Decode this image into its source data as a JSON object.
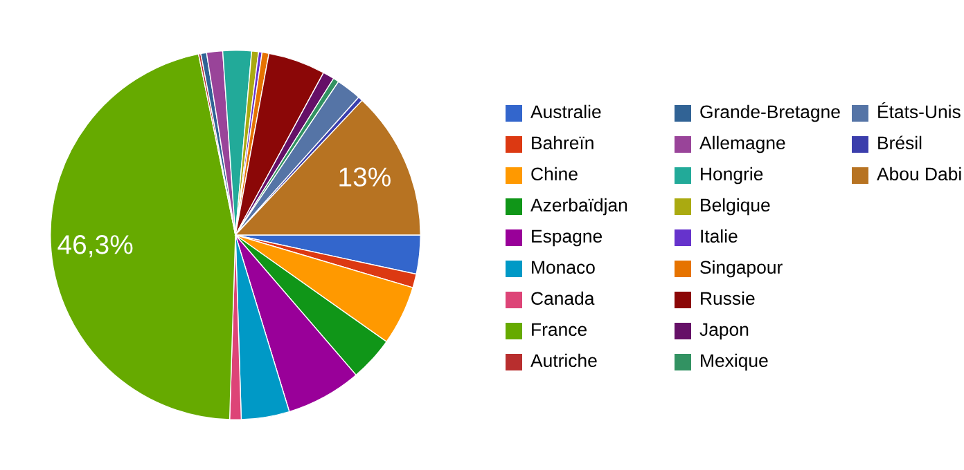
{
  "chart_data": {
    "type": "pie",
    "categories": [
      "Australie",
      "Bahreïn",
      "Chine",
      "Azerbaïdjan",
      "Espagne",
      "Monaco",
      "Canada",
      "France",
      "Autriche",
      "Grande-Bretagne",
      "Allemagne",
      "Hongrie",
      "Belgique",
      "Italie",
      "Singapour",
      "Russie",
      "Japon",
      "Mexique",
      "États-Unis",
      "Brésil",
      "Abou Dabi"
    ],
    "values": [
      3.4,
      1.2,
      5.2,
      3.9,
      6.6,
      4.2,
      1.0,
      46.3,
      0.2,
      0.5,
      1.4,
      2.5,
      0.6,
      0.3,
      0.6,
      5.0,
      1.0,
      0.5,
      2.2,
      0.4,
      13
    ],
    "value_labels": [
      null,
      null,
      null,
      null,
      null,
      null,
      null,
      "46,3%",
      null,
      null,
      null,
      null,
      null,
      null,
      null,
      null,
      null,
      null,
      null,
      null,
      "13%"
    ],
    "colors": [
      "#3366cc",
      "#dc3912",
      "#ff9900",
      "#109618",
      "#990099",
      "#0099c6",
      "#dd4477",
      "#66aa00",
      "#b82e2e",
      "#316395",
      "#994499",
      "#22aa99",
      "#aaaa11",
      "#6633cc",
      "#e67300",
      "#8b0707",
      "#651067",
      "#329262",
      "#5574a6",
      "#3b3eac",
      "#b77322"
    ],
    "legend": "right"
  }
}
